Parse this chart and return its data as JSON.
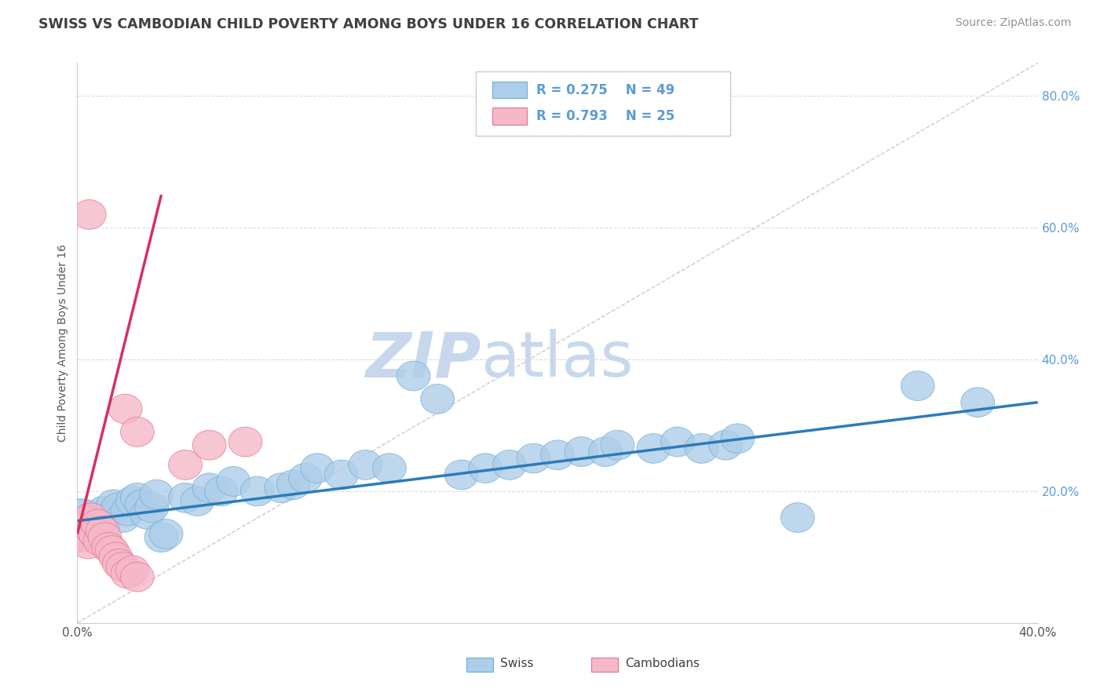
{
  "title": "SWISS VS CAMBODIAN CHILD POVERTY AMONG BOYS UNDER 16 CORRELATION CHART",
  "source_text": "Source: ZipAtlas.com",
  "ylabel": "Child Poverty Among Boys Under 16",
  "xlim": [
    0.0,
    40.0
  ],
  "ylim": [
    0.0,
    85.0
  ],
  "right_yticks": [
    20,
    40,
    60,
    80
  ],
  "right_ytick_labels": [
    "20.0%",
    "40.0%",
    "60.0%",
    "80.0%"
  ],
  "xtick_positions": [
    0,
    4,
    8,
    12,
    16,
    20,
    24,
    28,
    32,
    36,
    40
  ],
  "xtick_labels_shown": [
    "0.0%",
    "",
    "",
    "",
    "",
    "",
    "",
    "",
    "",
    "",
    "40.0%"
  ],
  "legend_r1": "R = 0.275",
  "legend_n1": "N = 49",
  "legend_r2": "R = 0.793",
  "legend_n2": "N = 25",
  "swiss_color": "#aecde8",
  "swiss_edge_color": "#6aaed6",
  "cambodian_color": "#f4b8c8",
  "cambodian_edge_color": "#e87090",
  "swiss_line_color": "#2b7bba",
  "cambodian_line_color": "#d63060",
  "diagonal_color": "#e0c0c8",
  "watermark_zip": "ZIP",
  "watermark_atlas": "atlas",
  "watermark_color": "#c8d8ec",
  "title_color": "#404040",
  "source_color": "#909090",
  "axis_label_color": "#5b9bd5",
  "legend_text_color": "#5b9bd5",
  "grid_color": "#dcdcdc",
  "swiss_points": [
    [
      0.3,
      14.5
    ],
    [
      0.5,
      15.5
    ],
    [
      0.7,
      16.0
    ],
    [
      0.9,
      15.0
    ],
    [
      1.1,
      17.0
    ],
    [
      1.3,
      16.5
    ],
    [
      1.5,
      18.0
    ],
    [
      1.7,
      17.5
    ],
    [
      1.9,
      16.0
    ],
    [
      2.1,
      17.0
    ],
    [
      2.3,
      18.5
    ],
    [
      2.5,
      19.0
    ],
    [
      2.7,
      18.0
    ],
    [
      2.9,
      16.5
    ],
    [
      3.1,
      17.5
    ],
    [
      3.3,
      19.5
    ],
    [
      3.5,
      13.0
    ],
    [
      3.7,
      13.5
    ],
    [
      4.5,
      19.0
    ],
    [
      5.0,
      18.5
    ],
    [
      5.5,
      20.5
    ],
    [
      6.0,
      20.0
    ],
    [
      6.5,
      21.5
    ],
    [
      7.5,
      20.0
    ],
    [
      8.5,
      20.5
    ],
    [
      9.0,
      21.0
    ],
    [
      9.5,
      22.0
    ],
    [
      10.0,
      23.5
    ],
    [
      11.0,
      22.5
    ],
    [
      12.0,
      24.0
    ],
    [
      13.0,
      23.5
    ],
    [
      14.0,
      37.5
    ],
    [
      15.0,
      34.0
    ],
    [
      16.0,
      22.5
    ],
    [
      17.0,
      23.5
    ],
    [
      18.0,
      24.0
    ],
    [
      19.0,
      25.0
    ],
    [
      20.0,
      25.5
    ],
    [
      21.0,
      26.0
    ],
    [
      22.0,
      26.0
    ],
    [
      22.5,
      27.0
    ],
    [
      24.0,
      26.5
    ],
    [
      25.0,
      27.5
    ],
    [
      26.0,
      26.5
    ],
    [
      27.0,
      27.0
    ],
    [
      27.5,
      28.0
    ],
    [
      30.0,
      16.0
    ],
    [
      35.0,
      36.0
    ],
    [
      37.5,
      33.5
    ]
  ],
  "swiss_sizes": [
    14,
    10,
    10,
    10,
    10,
    10,
    10,
    10,
    10,
    10,
    10,
    10,
    10,
    10,
    10,
    10,
    10,
    10,
    10,
    10,
    10,
    10,
    10,
    10,
    10,
    10,
    10,
    10,
    10,
    10,
    10,
    10,
    10,
    10,
    10,
    10,
    10,
    10,
    10,
    10,
    10,
    10,
    10,
    10,
    10,
    10,
    10,
    10,
    10
  ],
  "cambodian_points": [
    [
      0.15,
      14.5
    ],
    [
      0.25,
      13.0
    ],
    [
      0.35,
      15.5
    ],
    [
      0.45,
      12.0
    ],
    [
      0.55,
      16.0
    ],
    [
      0.65,
      14.0
    ],
    [
      0.75,
      13.5
    ],
    [
      0.85,
      15.0
    ],
    [
      0.95,
      12.5
    ],
    [
      1.05,
      14.0
    ],
    [
      1.15,
      13.0
    ],
    [
      1.3,
      11.5
    ],
    [
      1.45,
      11.0
    ],
    [
      1.6,
      10.0
    ],
    [
      1.75,
      9.0
    ],
    [
      1.9,
      8.5
    ],
    [
      2.1,
      7.5
    ],
    [
      2.3,
      8.0
    ],
    [
      2.5,
      7.0
    ],
    [
      0.5,
      62.0
    ],
    [
      2.0,
      32.5
    ],
    [
      2.5,
      29.0
    ],
    [
      4.5,
      24.0
    ],
    [
      5.5,
      27.0
    ],
    [
      7.0,
      27.5
    ]
  ],
  "swiss_trendline": [
    0.0,
    15.5,
    40.0,
    33.5
  ],
  "cambodian_trendline": [
    0.0,
    13.5,
    3.5,
    65.0
  ],
  "diagonal_trendline": [
    0.0,
    0.0,
    40.0,
    85.0
  ]
}
